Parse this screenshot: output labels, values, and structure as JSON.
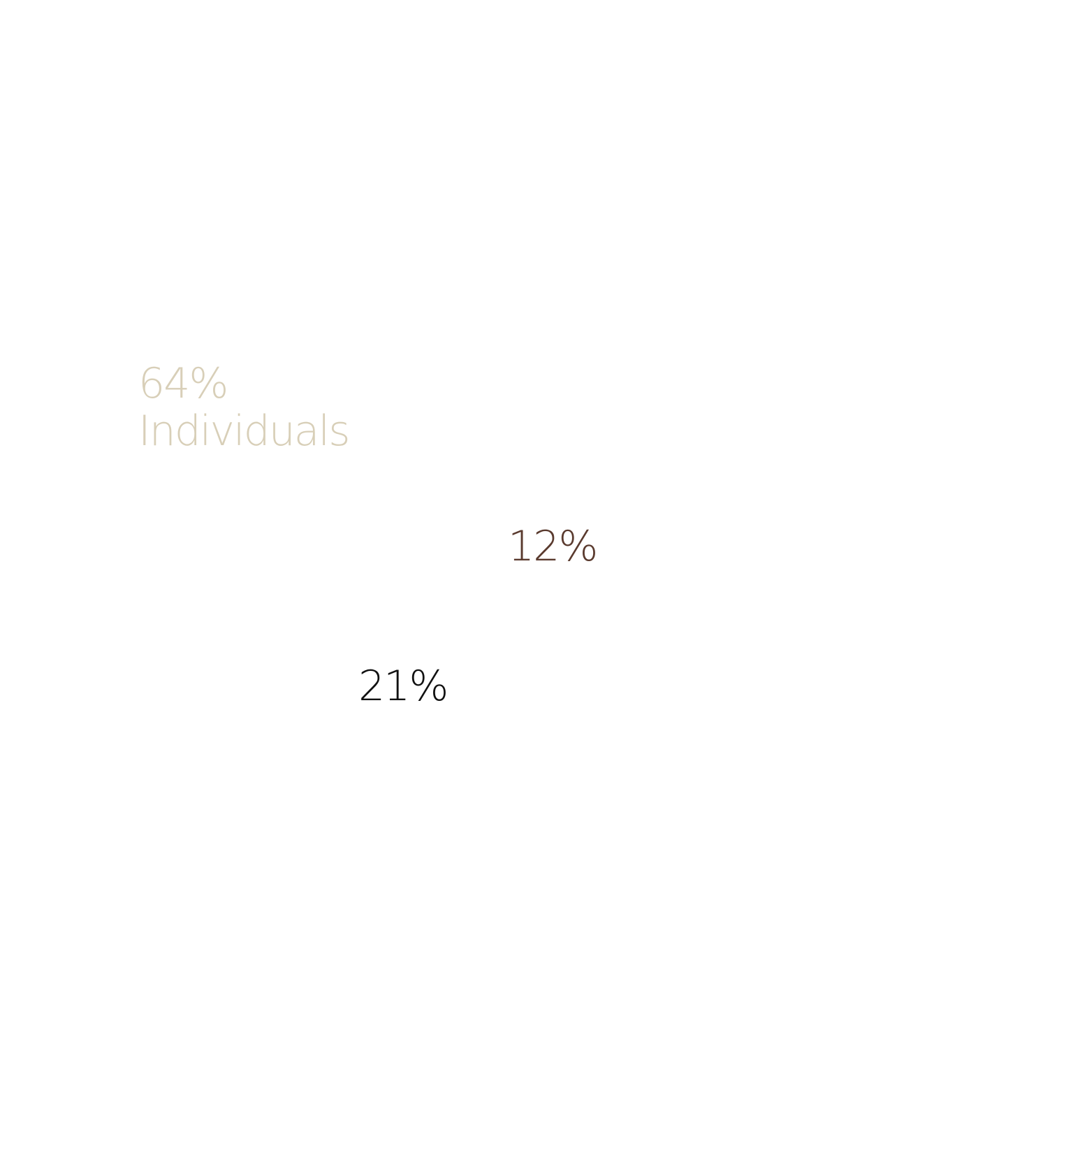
{
  "chart_data": {
    "type": "pie",
    "slices": [
      {
        "value": 64,
        "label_value": "64%",
        "label_name": "Individuals",
        "color": "#d8cfb8"
      },
      {
        "value": 12,
        "label_value": "12%",
        "label_name": "",
        "color": "#5a3a2e"
      },
      {
        "value": 21,
        "label_value": "21%",
        "label_name": "",
        "color": "#111111"
      }
    ]
  }
}
